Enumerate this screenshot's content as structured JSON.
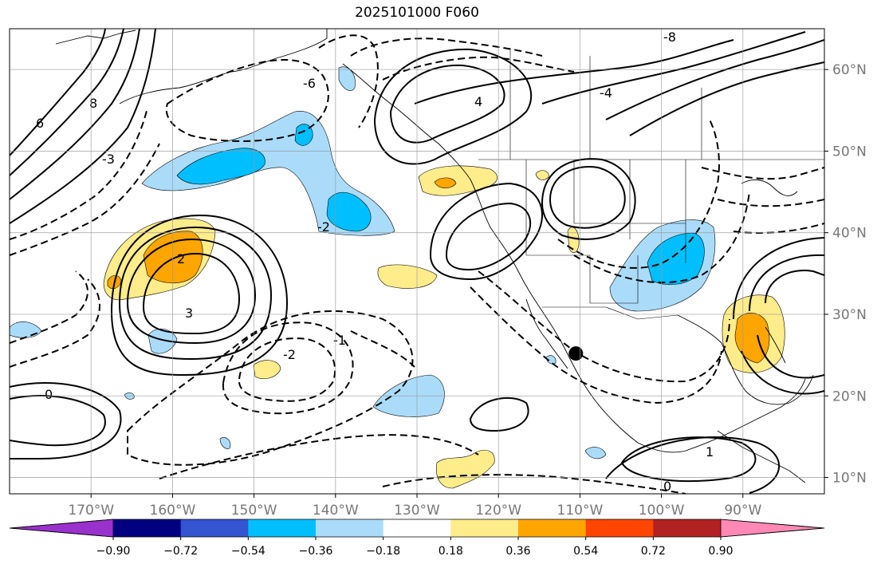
{
  "title": "2025101000 F060",
  "map": {
    "projection": "PlateCarree",
    "lon_range": [
      -180,
      -80
    ],
    "lat_range": [
      8,
      65
    ],
    "lon_ticks": [
      {
        "value": -170,
        "label": "170°W"
      },
      {
        "value": -160,
        "label": "160°W"
      },
      {
        "value": -150,
        "label": "150°W"
      },
      {
        "value": -140,
        "label": "140°W"
      },
      {
        "value": -130,
        "label": "130°W"
      },
      {
        "value": -120,
        "label": "120°W"
      },
      {
        "value": -110,
        "label": "110°W"
      },
      {
        "value": -100,
        "label": "100°W"
      },
      {
        "value": -90,
        "label": "90°W"
      }
    ],
    "lat_ticks": [
      {
        "value": 60,
        "label": "60°N"
      },
      {
        "value": 50,
        "label": "50°N"
      },
      {
        "value": 40,
        "label": "40°N"
      },
      {
        "value": 30,
        "label": "30°N"
      },
      {
        "value": 20,
        "label": "20°N"
      },
      {
        "value": 10,
        "label": "10°N"
      }
    ],
    "marker": {
      "lon": -110.5,
      "lat": 25.2,
      "color": "#000000"
    },
    "contour_labels": [
      "8",
      "6",
      "4",
      "3",
      "2",
      "1",
      "0",
      "0",
      "-1",
      "-2",
      "-2",
      "-3",
      "-4",
      "-6",
      "-8"
    ]
  },
  "colorbar": {
    "ticks": [
      "−0.90",
      "−0.72",
      "−0.54",
      "−0.36",
      "−0.18",
      "0.18",
      "0.36",
      "0.54",
      "0.72",
      "0.90"
    ],
    "colors": [
      "#9932cc",
      "#000080",
      "#3454d1",
      "#00bfff",
      "#aadcfa",
      "#ffffff",
      "#ffec8b",
      "#ffa500",
      "#ff4500",
      "#b22222",
      "#ff89b4"
    ]
  }
}
